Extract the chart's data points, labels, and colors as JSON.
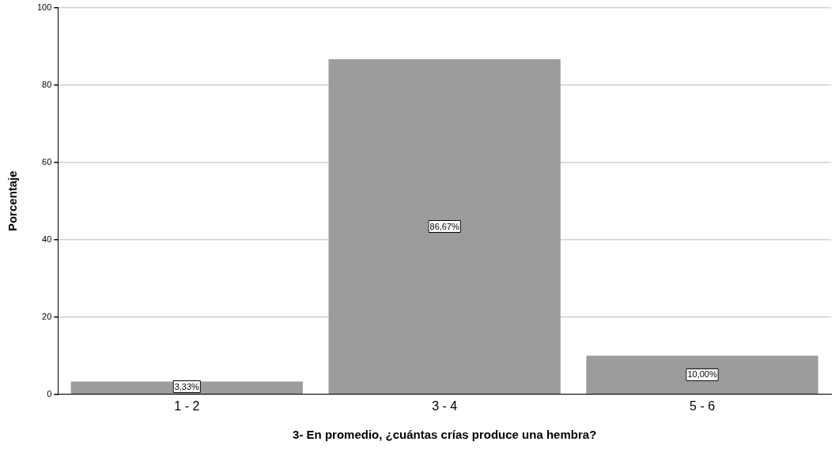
{
  "chart_data": {
    "type": "bar",
    "xlabel": "3- En promedio, ¿cuántas crías produce una hembra?",
    "ylabel": "Porcentaje",
    "categories": [
      "1 - 2",
      "3 - 4",
      "5 - 6"
    ],
    "values": [
      3.33,
      86.67,
      10.0
    ],
    "value_labels": [
      "3,33%",
      "86,67%",
      "10,00%"
    ],
    "color": "#9c9c9c",
    "ylim": [
      0,
      100
    ],
    "yticks": [
      0,
      20,
      40,
      60,
      80,
      100
    ],
    "grid": "y"
  }
}
